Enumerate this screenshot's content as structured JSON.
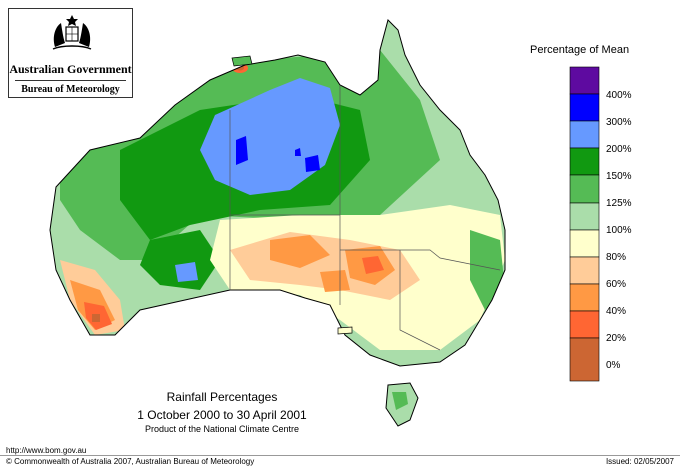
{
  "logo": {
    "government": "Australian Government",
    "bureau": "Bureau of Meteorology"
  },
  "legend": {
    "title": "Percentage of Mean",
    "items": [
      {
        "color": "#5e0aa0"
      },
      {
        "label": "400%",
        "color": "#0000ff"
      },
      {
        "label": "300%",
        "color": "#6699ff"
      },
      {
        "label": "200%",
        "color": "#119911"
      },
      {
        "label": "150%",
        "color": "#55bb55"
      },
      {
        "label": "125%",
        "color": "#aaddaa"
      },
      {
        "label": "100%",
        "color": "#ffffcc"
      },
      {
        "label": "80%",
        "color": "#ffcc99"
      },
      {
        "label": "60%",
        "color": "#ff9944"
      },
      {
        "label": "40%",
        "color": "#ff6633"
      },
      {
        "label": "20%",
        "color": "#cc6633"
      },
      {
        "label": "0%"
      }
    ]
  },
  "caption": {
    "title": "Rainfall Percentages",
    "period": "1 October 2000 to 30 April 2001",
    "product": "Product of the National Climate Centre"
  },
  "footer": {
    "url": "http://www.bom.gov.au",
    "copyright": "© Commonwealth of Australia 2007, Australian Bureau of Meteorology",
    "issued": "Issued: 02/05/2007"
  }
}
